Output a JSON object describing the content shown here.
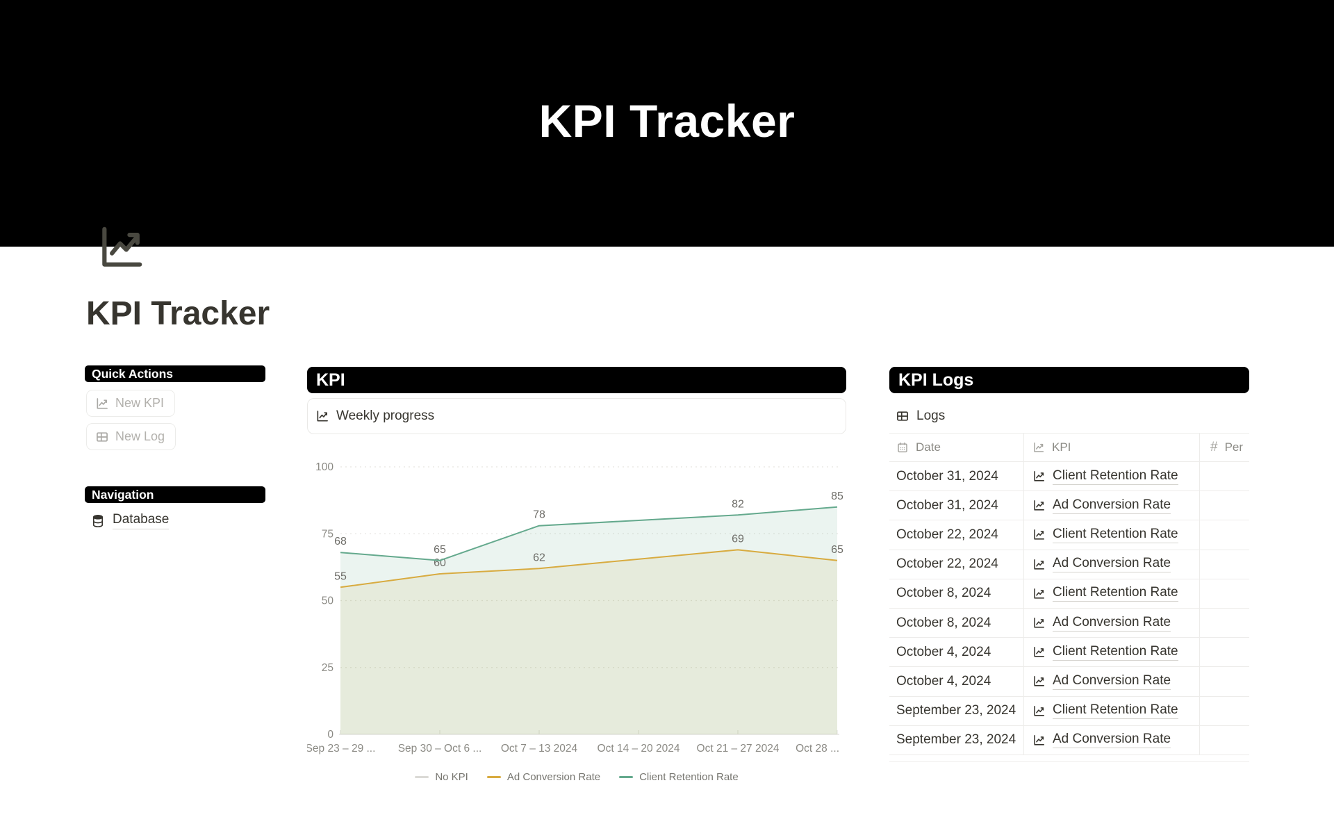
{
  "banner": {
    "title": "KPI Tracker"
  },
  "page": {
    "icon": "chart-increasing-icon",
    "title": "KPI Tracker"
  },
  "sidebar": {
    "quick_actions": {
      "heading": "Quick Actions",
      "buttons": [
        {
          "label": "New KPI",
          "icon": "chart-increasing-icon"
        },
        {
          "label": "New Log",
          "icon": "table-icon"
        }
      ]
    },
    "navigation": {
      "heading": "Navigation",
      "items": [
        {
          "label": "Database",
          "icon": "database-icon"
        }
      ]
    }
  },
  "kpi_section": {
    "heading": "KPI",
    "subheading": "Weekly progress"
  },
  "chart_data": {
    "type": "line",
    "title": "Weekly progress",
    "categories": [
      "Sep 23 – 29 ...",
      "Sep 30 – Oct 6 ...",
      "Oct 7 – 13 2024",
      "Oct 14 – 20 2024",
      "Oct 21 – 27 2024",
      "Oct 28 ..."
    ],
    "series": [
      {
        "name": "No KPI",
        "color": "#dbdad6",
        "fill": "none",
        "values": [
          null,
          null,
          null,
          null,
          null,
          null
        ]
      },
      {
        "name": "Ad Conversion Rate",
        "color": "#d8ab40",
        "fill": "rgba(215,169,63,0.12)",
        "values": [
          55,
          60,
          62,
          null,
          69,
          65
        ]
      },
      {
        "name": "Client Retention Rate",
        "color": "#64a98d",
        "fill": "rgba(100,169,141,0.13)",
        "values": [
          68,
          65,
          78,
          null,
          82,
          85
        ]
      }
    ],
    "ylim": [
      0,
      100
    ],
    "yticks": [
      0,
      25,
      50,
      75,
      100
    ],
    "grid": "dotted-horizontal",
    "legend_position": "bottom",
    "area_fill": true,
    "point_labels": true
  },
  "logs_section": {
    "heading": "KPI Logs",
    "subheading": "Logs",
    "table": {
      "columns": [
        {
          "label": "Date",
          "icon": "calendar-icon"
        },
        {
          "label": "KPI",
          "icon": "chart-increasing-icon"
        },
        {
          "label": "Per",
          "icon": "number-icon"
        }
      ],
      "rows": [
        {
          "date": "October 31, 2024",
          "kpi": "Client Retention Rate"
        },
        {
          "date": "October 31, 2024",
          "kpi": "Ad Conversion Rate"
        },
        {
          "date": "October 22, 2024",
          "kpi": "Client Retention Rate"
        },
        {
          "date": "October 22, 2024",
          "kpi": "Ad Conversion Rate"
        },
        {
          "date": "October 8, 2024",
          "kpi": "Client Retention Rate"
        },
        {
          "date": "October 8, 2024",
          "kpi": "Ad Conversion Rate"
        },
        {
          "date": "October 4, 2024",
          "kpi": "Client Retention Rate"
        },
        {
          "date": "October 4, 2024",
          "kpi": "Ad Conversion Rate"
        },
        {
          "date": "September 23, 2024",
          "kpi": "Client Retention Rate"
        },
        {
          "date": "September 23, 2024",
          "kpi": "Ad Conversion Rate"
        }
      ]
    }
  }
}
